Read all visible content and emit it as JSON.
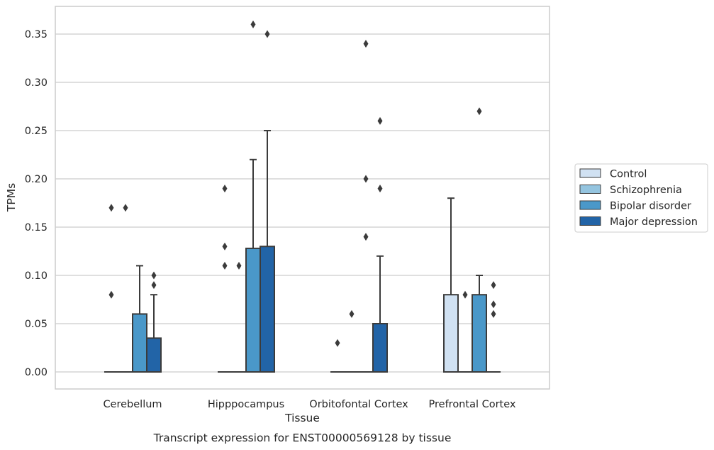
{
  "caption": "Transcript expression for ENST00000569128 by tissue",
  "chart_data": {
    "type": "box",
    "title": "",
    "xlabel": "Tissue",
    "ylabel": "TPMs",
    "ylim": [
      -0.018,
      0.378
    ],
    "yticks": [
      "0.00",
      "0.05",
      "0.10",
      "0.15",
      "0.20",
      "0.25",
      "0.30",
      "0.35"
    ],
    "categories": [
      "Cerebellum",
      "Hipppocampus",
      "Orbitofontal Cortex",
      "Prefrontal Cortex"
    ],
    "grid": "horizontal",
    "legend_placement": "right",
    "series": [
      {
        "name": "Control",
        "color": "#d0e1f2",
        "boxes": [
          {
            "q1": 0,
            "q3": 0,
            "whisker_high": 0,
            "outliers": [
              0.08,
              0.17
            ]
          },
          {
            "q1": 0,
            "q3": 0,
            "whisker_high": 0,
            "outliers": [
              0.11,
              0.13,
              0.19
            ]
          },
          {
            "q1": 0,
            "q3": 0,
            "whisker_high": 0,
            "outliers": [
              0.03
            ]
          },
          {
            "q1": 0,
            "q3": 0.08,
            "whisker_high": 0.18,
            "outliers": []
          }
        ]
      },
      {
        "name": "Schizophrenia",
        "color": "#94c4df",
        "boxes": [
          {
            "q1": 0,
            "q3": 0,
            "whisker_high": 0,
            "outliers": [
              0.17
            ]
          },
          {
            "q1": 0,
            "q3": 0,
            "whisker_high": 0,
            "outliers": [
              0.11
            ]
          },
          {
            "q1": 0,
            "q3": 0,
            "whisker_high": 0,
            "outliers": [
              0.06
            ]
          },
          {
            "q1": 0,
            "q3": 0,
            "whisker_high": 0,
            "outliers": [
              0.08
            ]
          }
        ]
      },
      {
        "name": "Bipolar disorder",
        "color": "#4a98c9",
        "boxes": [
          {
            "q1": 0,
            "q3": 0.06,
            "whisker_high": 0.11,
            "outliers": []
          },
          {
            "q1": 0,
            "q3": 0.128,
            "whisker_high": 0.22,
            "outliers": [
              0.36
            ]
          },
          {
            "q1": 0,
            "q3": 0,
            "whisker_high": 0,
            "outliers": [
              0.14,
              0.2,
              0.34
            ]
          },
          {
            "q1": 0,
            "q3": 0.08,
            "whisker_high": 0.1,
            "outliers": [
              0.27
            ]
          }
        ]
      },
      {
        "name": "Major depression",
        "color": "#2264a7",
        "boxes": [
          {
            "q1": 0,
            "q3": 0.035,
            "whisker_high": 0.08,
            "outliers": [
              0.09,
              0.1
            ]
          },
          {
            "q1": 0,
            "q3": 0.13,
            "whisker_high": 0.25,
            "outliers": [
              0.35
            ]
          },
          {
            "q1": 0,
            "q3": 0.05,
            "whisker_high": 0.12,
            "outliers": [
              0.19,
              0.26
            ]
          },
          {
            "q1": 0,
            "q3": 0,
            "whisker_high": 0,
            "outliers": [
              0.06,
              0.07,
              0.09
            ]
          }
        ]
      }
    ]
  }
}
